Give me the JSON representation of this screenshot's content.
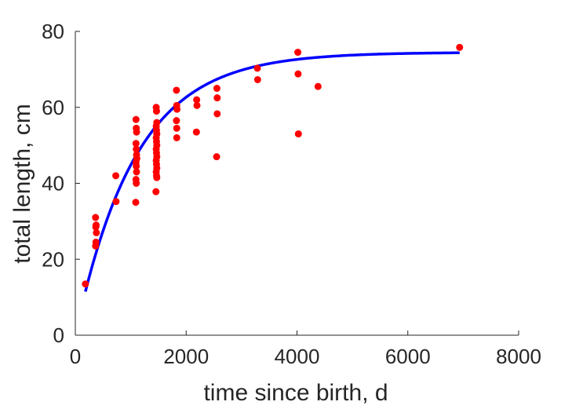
{
  "chart_data": {
    "type": "scatter",
    "title": "",
    "xlabel": "time since birth, d",
    "ylabel": "total length, cm",
    "xlim": [
      0,
      8000
    ],
    "ylim": [
      0,
      80
    ],
    "xticks": [
      0,
      2000,
      4000,
      6000,
      8000
    ],
    "yticks": [
      0,
      20,
      40,
      60,
      80
    ],
    "grid": false,
    "colors": {
      "points": "#ff0000",
      "curve": "#0000ff",
      "axis": "#262626"
    },
    "series": [
      {
        "kind": "points",
        "points": [
          [
            182,
            13.5
          ],
          [
            365,
            31.0
          ],
          [
            370,
            28.5
          ],
          [
            375,
            29.0
          ],
          [
            380,
            27.0
          ],
          [
            372,
            24.5
          ],
          [
            365,
            23.5
          ],
          [
            730,
            42.0
          ],
          [
            735,
            35.2
          ],
          [
            1095,
            56.8
          ],
          [
            1100,
            54.5
          ],
          [
            1105,
            53.5
          ],
          [
            1095,
            50.5
          ],
          [
            1100,
            49.0
          ],
          [
            1105,
            47.5
          ],
          [
            1110,
            46.5
          ],
          [
            1095,
            45.5
          ],
          [
            1100,
            44.5
          ],
          [
            1105,
            43.0
          ],
          [
            1095,
            41.0
          ],
          [
            1100,
            40.0
          ],
          [
            1090,
            35.0
          ],
          [
            1460,
            60.0
          ],
          [
            1465,
            59.0
          ],
          [
            1470,
            56.0
          ],
          [
            1460,
            55.0
          ],
          [
            1465,
            54.0
          ],
          [
            1470,
            53.0
          ],
          [
            1460,
            52.0
          ],
          [
            1465,
            51.0
          ],
          [
            1470,
            50.0
          ],
          [
            1460,
            49.0
          ],
          [
            1465,
            48.0
          ],
          [
            1470,
            47.0
          ],
          [
            1460,
            46.0
          ],
          [
            1465,
            45.0
          ],
          [
            1470,
            44.0
          ],
          [
            1460,
            43.0
          ],
          [
            1465,
            42.0
          ],
          [
            1470,
            41.5
          ],
          [
            1455,
            37.8
          ],
          [
            1825,
            64.5
          ],
          [
            1830,
            60.5
          ],
          [
            1835,
            59.5
          ],
          [
            1825,
            56.5
          ],
          [
            1830,
            54.5
          ],
          [
            1830,
            52.0
          ],
          [
            2190,
            62.0
          ],
          [
            2195,
            60.5
          ],
          [
            2185,
            53.5
          ],
          [
            2555,
            65.0
          ],
          [
            2560,
            62.5
          ],
          [
            2560,
            58.3
          ],
          [
            2550,
            47.0
          ],
          [
            3285,
            70.3
          ],
          [
            3290,
            67.3
          ],
          [
            4015,
            74.5
          ],
          [
            4020,
            68.8
          ],
          [
            4025,
            53.0
          ],
          [
            4380,
            65.5
          ],
          [
            6935,
            75.8
          ]
        ]
      },
      {
        "kind": "fit-curve",
        "model": "von Bertalanffy",
        "Linf": 74.5,
        "k": 0.00092,
        "L0": 0,
        "xrange": [
          182,
          6935
        ]
      }
    ]
  }
}
